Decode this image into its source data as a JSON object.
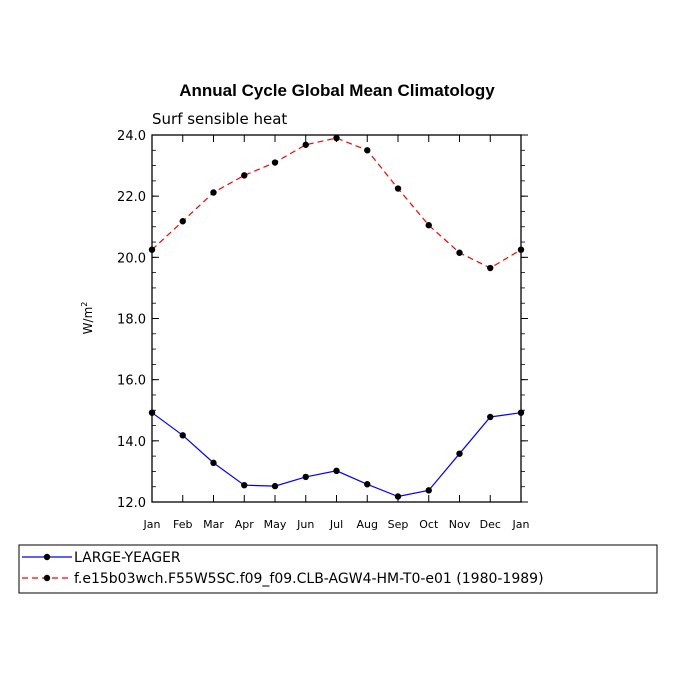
{
  "chart_data": {
    "type": "line",
    "title": "Annual Cycle Global Mean Climatology",
    "subtitle": "Surf sensible heat",
    "ylabel": "W/m",
    "ylabel_sup": "2",
    "xlabel": "",
    "ylim": [
      12.0,
      24.0
    ],
    "yticks": [
      "12.0",
      "14.0",
      "16.0",
      "18.0",
      "20.0",
      "22.0",
      "24.0"
    ],
    "categories": [
      "Jan",
      "Feb",
      "Mar",
      "Apr",
      "May",
      "Jun",
      "Jul",
      "Aug",
      "Sep",
      "Oct",
      "Nov",
      "Dec",
      "Jan"
    ],
    "grid": false,
    "legend_position": "bottom",
    "series": [
      {
        "name": "LARGE-YEAGER",
        "color": "#0000ff",
        "dash": "solid",
        "values": [
          14.92,
          14.18,
          13.28,
          12.55,
          12.52,
          12.82,
          13.02,
          12.58,
          12.18,
          12.38,
          13.58,
          14.78,
          14.92
        ]
      },
      {
        "name": "f.e15b03wch.F55W5SC.f09_f09.CLB-AGW4-HM-T0-e01 (1980-1989)",
        "color": "#ff0000",
        "dash": "dashed",
        "values": [
          20.25,
          21.18,
          22.12,
          22.68,
          23.1,
          23.68,
          23.9,
          23.5,
          22.25,
          21.05,
          20.15,
          19.65,
          20.25
        ]
      }
    ]
  }
}
